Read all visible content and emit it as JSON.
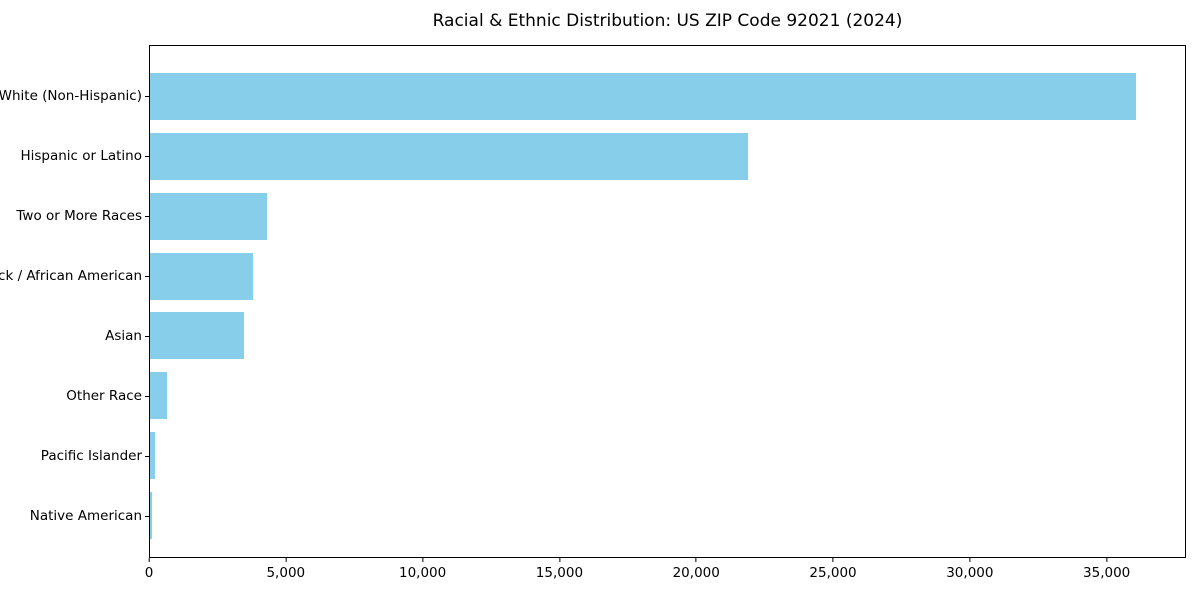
{
  "figure": {
    "background": "#ffffff"
  },
  "chart_data": {
    "type": "bar",
    "orientation": "horizontal",
    "title": "Racial & Ethnic Distribution: US ZIP Code 92021 (2024)",
    "categories": [
      "White (Non-Hispanic)",
      "Hispanic or Latino",
      "Two or More Races",
      "Black / African American",
      "Asian",
      "Other Race",
      "Pacific Islander",
      "Native American"
    ],
    "values": [
      36100,
      21900,
      4300,
      3770,
      3440,
      610,
      170,
      90
    ],
    "bar_color": "#87CEEB",
    "axis_color": "#000000",
    "text_color": "#000000",
    "xlabel": "",
    "ylabel": "",
    "xlim": [
      0,
      37900
    ],
    "x_ticks": [
      0,
      5000,
      10000,
      15000,
      20000,
      25000,
      30000,
      35000
    ],
    "x_tick_labels": [
      "0",
      "5,000",
      "10,000",
      "15,000",
      "20,000",
      "25,000",
      "30,000",
      "35,000"
    ],
    "grid": false,
    "legend": null
  }
}
